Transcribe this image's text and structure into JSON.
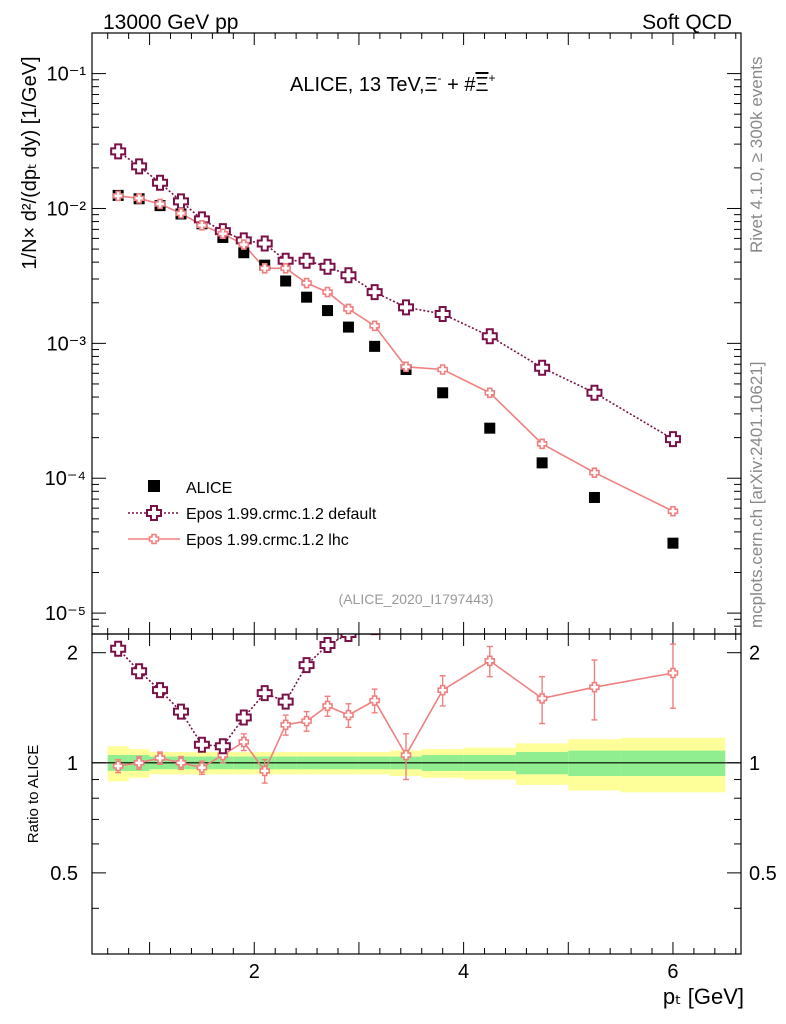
{
  "header": {
    "left": "13000 GeV pp",
    "right": "Soft QCD"
  },
  "side_texts": {
    "rivet": "Rivet 4.1.0, ≥ 300k events",
    "mcplots": "mcplots.cern.ch [arXiv:2401.10621]"
  },
  "colors": {
    "data": "#000000",
    "default": "#7a1048",
    "lhc": "#f08080",
    "band_inner": "#90ee90",
    "band_outer": "#ffff99"
  },
  "chart_data": {
    "type": "scatter",
    "title_prefix": "ALICE, 13 TeV,",
    "title_sym1": "Ξ",
    "title_sup1": "-",
    "title_plus": " + #",
    "title_sym2": "Ξ",
    "title_sup2": "+",
    "analysis_id": "(ALICE_2020_I1797443)",
    "ylabel_main": "1/N× d²/(dpₜ dy) [1/GeV]",
    "ylabel_ratio": "Ratio to ALICE",
    "xlabel": "pₜ [GeV]",
    "xlim": [
      0.45,
      6.65
    ],
    "ylim_main": [
      7e-06,
      0.2
    ],
    "ylim_ratio": [
      0.3,
      2.25
    ],
    "x_ticks": [
      2,
      4,
      6
    ],
    "y_ticks_main": [
      {
        "label": "10⁻⁵",
        "value": 1e-05
      },
      {
        "label": "10⁻⁴",
        "value": 0.0001
      },
      {
        "label": "10⁻³",
        "value": 0.001
      },
      {
        "label": "10⁻²",
        "value": 0.01
      },
      {
        "label": "10⁻¹",
        "value": 0.1
      }
    ],
    "y_ticks_ratio": [
      {
        "label": "0.5",
        "value": 0.5
      },
      {
        "label": "1",
        "value": 1
      },
      {
        "label": "2",
        "value": 2
      }
    ],
    "legend": {
      "position": "lower-left",
      "entries": [
        "ALICE",
        "Epos 1.99.crmc.1.2 default",
        "Epos 1.99.crmc.1.2 lhc"
      ]
    },
    "x": [
      0.7,
      0.9,
      1.1,
      1.3,
      1.5,
      1.7,
      1.9,
      2.1,
      2.3,
      2.5,
      2.7,
      2.9,
      3.15,
      3.45,
      3.8,
      4.25,
      4.75,
      5.25,
      6.0
    ],
    "bin_edges": [
      0.6,
      0.8,
      1.0,
      1.2,
      1.4,
      1.6,
      1.8,
      2.0,
      2.2,
      2.4,
      2.6,
      2.8,
      3.0,
      3.3,
      3.6,
      4.0,
      4.5,
      5.0,
      5.5,
      6.5
    ],
    "series": [
      {
        "name": "ALICE",
        "values": [
          0.0125,
          0.0118,
          0.0105,
          0.0091,
          0.0077,
          0.0061,
          0.0047,
          0.0038,
          0.0029,
          0.0022,
          0.00175,
          0.00132,
          0.00095,
          0.00064,
          0.00043,
          0.000235,
          0.00013,
          7.2e-05,
          3.3e-05
        ]
      },
      {
        "name": "Epos 1.99.crmc.1.2 default",
        "values": [
          0.0265,
          0.0205,
          0.0155,
          0.0113,
          0.0083,
          0.0068,
          0.0058,
          0.0055,
          0.0041,
          0.0041,
          0.0037,
          0.0032,
          0.0024,
          0.00185,
          0.00165,
          0.00113,
          0.00066,
          0.00043,
          0.000195
        ],
        "ratio": [
          2.05,
          1.78,
          1.58,
          1.38,
          1.12,
          1.11,
          1.33,
          1.55,
          1.47,
          1.85,
          2.1,
          2.25,
          2.35,
          null,
          null,
          null,
          null,
          null,
          null
        ]
      },
      {
        "name": "Epos 1.99.crmc.1.2 lhc",
        "values": [
          0.0124,
          0.0119,
          0.0108,
          0.0092,
          0.0075,
          0.0065,
          0.0054,
          0.0036,
          0.0036,
          0.0028,
          0.0024,
          0.0018,
          0.00135,
          0.00067,
          0.00064,
          0.00043,
          0.00018,
          0.00011,
          5.7e-05
        ],
        "ratio": [
          0.98,
          1.0,
          1.03,
          1.0,
          0.97,
          1.05,
          1.14,
          0.95,
          1.27,
          1.3,
          1.43,
          1.35,
          1.48,
          1.05,
          1.58,
          1.9,
          1.5,
          1.61,
          1.76
        ],
        "ratio_err": [
          0.04,
          0.04,
          0.04,
          0.04,
          0.04,
          0.05,
          0.06,
          0.07,
          0.08,
          0.08,
          0.09,
          0.1,
          0.11,
          0.15,
          0.15,
          0.18,
          0.22,
          0.3,
          0.35
        ]
      }
    ],
    "band_inner_halfwidth": [
      0.05,
      0.05,
      0.04,
      0.04,
      0.04,
      0.04,
      0.04,
      0.04,
      0.04,
      0.04,
      0.04,
      0.04,
      0.04,
      0.04,
      0.05,
      0.05,
      0.07,
      0.08,
      0.08
    ],
    "band_outer_halfwidth": [
      0.11,
      0.09,
      0.07,
      0.07,
      0.07,
      0.07,
      0.07,
      0.07,
      0.07,
      0.07,
      0.07,
      0.07,
      0.07,
      0.08,
      0.09,
      0.1,
      0.13,
      0.16,
      0.17
    ]
  }
}
